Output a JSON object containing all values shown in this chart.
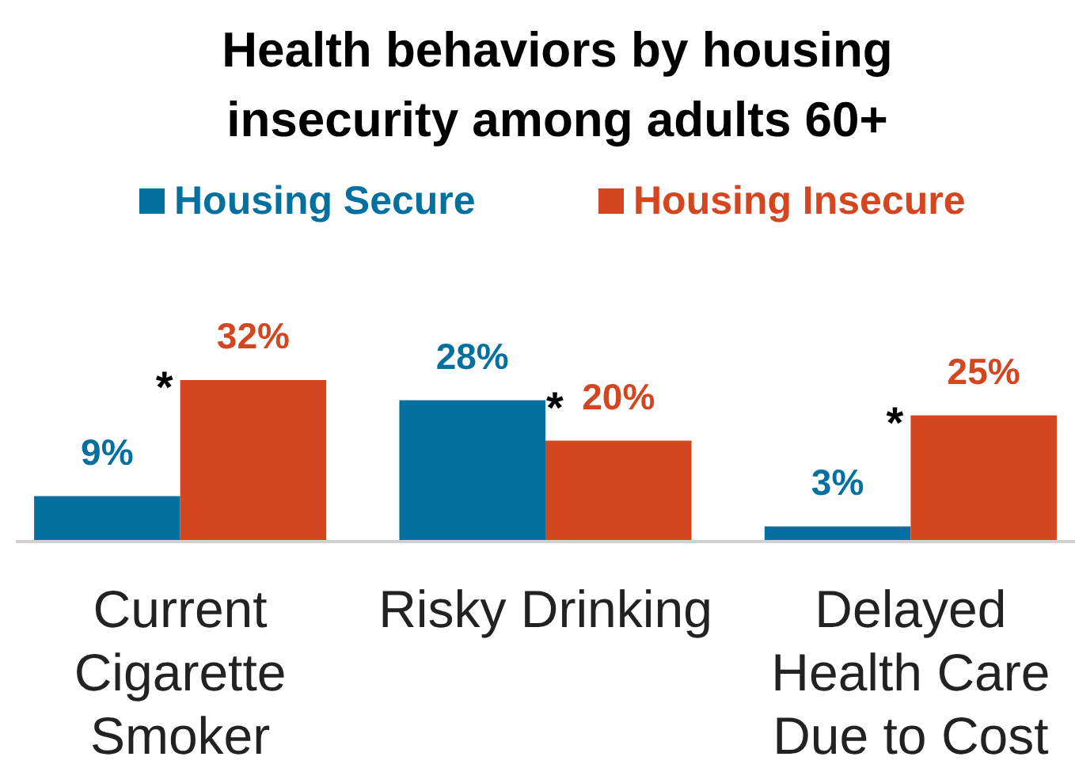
{
  "chart_data": {
    "type": "bar",
    "title": "Health behaviors by housing insecurity among adults 60+",
    "categories": [
      "Current Cigarette Smoker",
      "Risky Drinking",
      "Delayed Health Care Due to Cost"
    ],
    "series": [
      {
        "name": "Housing Secure",
        "color": "#0370a0",
        "values": [
          9,
          28,
          3
        ],
        "value_labels": [
          "9%",
          "28%",
          "3%"
        ]
      },
      {
        "name": "Housing Insecure",
        "color": "#d3461f",
        "values": [
          32,
          20,
          25
        ],
        "value_labels": [
          "32%",
          "20%",
          "25%"
        ]
      }
    ],
    "legend": "top",
    "annotations": [
      {
        "text": "*",
        "x": "Current Cigarette Smoker",
        "y": 32
      },
      {
        "text": "*",
        "x": "Risky Drinking",
        "y": 28
      },
      {
        "text": "*",
        "x": "Delayed Health Care Due to Cost",
        "y": 25
      }
    ]
  }
}
